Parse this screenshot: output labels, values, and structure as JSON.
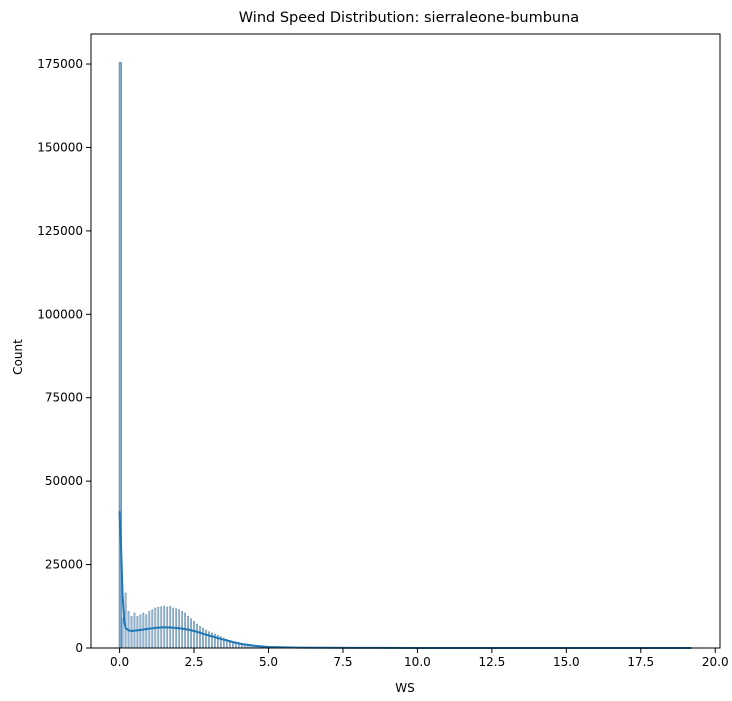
{
  "chart_data": {
    "type": "bar",
    "title": "Wind Speed Distribution: sierraleone-bumbuna",
    "xlabel": "WS",
    "ylabel": "Count",
    "xlim": [
      -0.96,
      20.16
    ],
    "ylim": [
      0,
      184000
    ],
    "x_ticks": [
      0.0,
      2.5,
      5.0,
      7.5,
      10.0,
      12.5,
      15.0,
      17.5,
      20.0
    ],
    "x_tick_labels": [
      "0.0",
      "2.5",
      "5.0",
      "7.5",
      "10.0",
      "12.5",
      "15.0",
      "17.5",
      "20.0"
    ],
    "y_ticks": [
      0,
      25000,
      50000,
      75000,
      100000,
      125000,
      150000,
      175000
    ],
    "y_tick_labels": [
      "0",
      "25000",
      "50000",
      "75000",
      "100000",
      "125000",
      "150000",
      "175000"
    ],
    "bin_width": 0.1,
    "bins": [
      [
        0.0,
        175500
      ],
      [
        0.1,
        9000
      ],
      [
        0.2,
        16500
      ],
      [
        0.3,
        11000
      ],
      [
        0.4,
        9500
      ],
      [
        0.5,
        10500
      ],
      [
        0.6,
        9500
      ],
      [
        0.7,
        10000
      ],
      [
        0.8,
        10500
      ],
      [
        0.9,
        10000
      ],
      [
        1.0,
        11000
      ],
      [
        1.1,
        11500
      ],
      [
        1.2,
        12000
      ],
      [
        1.3,
        12200
      ],
      [
        1.4,
        12400
      ],
      [
        1.5,
        12600
      ],
      [
        1.6,
        12300
      ],
      [
        1.7,
        12500
      ],
      [
        1.8,
        12000
      ],
      [
        1.9,
        11800
      ],
      [
        2.0,
        11500
      ],
      [
        2.1,
        11000
      ],
      [
        2.2,
        10500
      ],
      [
        2.3,
        9500
      ],
      [
        2.4,
        8800
      ],
      [
        2.5,
        8000
      ],
      [
        2.6,
        7200
      ],
      [
        2.7,
        6500
      ],
      [
        2.8,
        6000
      ],
      [
        2.9,
        5400
      ],
      [
        3.0,
        4900
      ],
      [
        3.1,
        4500
      ],
      [
        3.2,
        4200
      ],
      [
        3.3,
        3800
      ],
      [
        3.4,
        3400
      ],
      [
        3.5,
        3000
      ],
      [
        3.6,
        2600
      ],
      [
        3.7,
        2300
      ],
      [
        3.8,
        2000
      ],
      [
        3.9,
        1700
      ],
      [
        4.0,
        1500
      ],
      [
        4.1,
        1300
      ],
      [
        4.2,
        1100
      ],
      [
        4.3,
        950
      ],
      [
        4.4,
        800
      ],
      [
        4.5,
        680
      ],
      [
        4.6,
        580
      ],
      [
        4.7,
        480
      ],
      [
        4.8,
        400
      ],
      [
        4.9,
        340
      ],
      [
        5.0,
        280
      ],
      [
        5.1,
        230
      ],
      [
        5.2,
        190
      ],
      [
        5.3,
        160
      ],
      [
        5.4,
        130
      ],
      [
        5.5,
        110
      ],
      [
        5.6,
        90
      ],
      [
        5.7,
        75
      ],
      [
        5.8,
        60
      ],
      [
        5.9,
        50
      ],
      [
        6.0,
        40
      ],
      [
        6.2,
        30
      ],
      [
        6.4,
        20
      ],
      [
        6.6,
        15
      ],
      [
        6.8,
        10
      ]
    ],
    "kde": {
      "x": [
        0.0,
        0.05,
        0.1,
        0.15,
        0.2,
        0.3,
        0.4,
        0.5,
        0.7,
        0.9,
        1.1,
        1.3,
        1.5,
        1.7,
        1.9,
        2.1,
        2.3,
        2.5,
        2.7,
        2.9,
        3.1,
        3.3,
        3.5,
        3.8,
        4.1,
        4.5,
        5.0,
        6.0,
        8.0,
        10.0,
        12.0,
        15.0,
        19.2
      ],
      "y": [
        41000,
        30000,
        16000,
        8500,
        6000,
        5300,
        5100,
        5200,
        5400,
        5700,
        5900,
        6100,
        6200,
        6150,
        6000,
        5800,
        5500,
        5100,
        4600,
        4000,
        3500,
        3000,
        2500,
        1800,
        1200,
        700,
        300,
        100,
        30,
        10,
        5,
        3,
        0
      ]
    },
    "colors": {
      "bar_fill": "#a9c6df",
      "bar_edge": "#3c6f98",
      "kde": "#1f77b4",
      "tall_bar": "#7aa7cb"
    },
    "grid": false,
    "legend": "none"
  }
}
